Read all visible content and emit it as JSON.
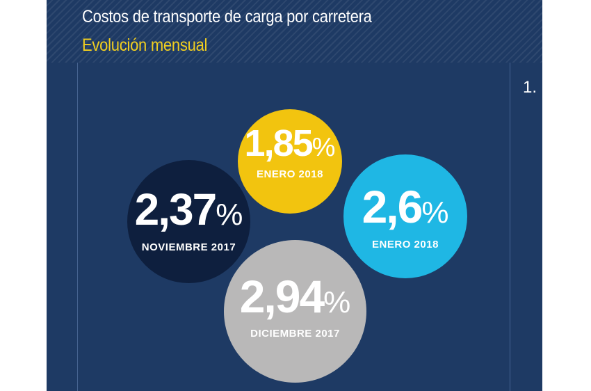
{
  "header": {
    "title": "Costos de transporte de carga por carretera",
    "subtitle": "Evolución mensual"
  },
  "side_number": "1.",
  "bubbles": {
    "yellow": {
      "value": "1,85",
      "unit": "%",
      "label": "ENERO 2018",
      "color": "#f2c40f"
    },
    "navy": {
      "value": "2,37",
      "unit": "%",
      "label": "NOVIEMBRE 2017",
      "color": "#0e1f3e"
    },
    "cyan": {
      "value": "2,6",
      "unit": "%",
      "label": "ENERO 2018",
      "color": "#1fb7e4"
    },
    "gray": {
      "value": "2,94",
      "unit": "%",
      "label": "DICIEMBRE 2017",
      "color": "#b9b8b8"
    }
  },
  "colors": {
    "background": "#1e3a64",
    "title": "#ffffff",
    "subtitle": "#f2cf1f"
  }
}
